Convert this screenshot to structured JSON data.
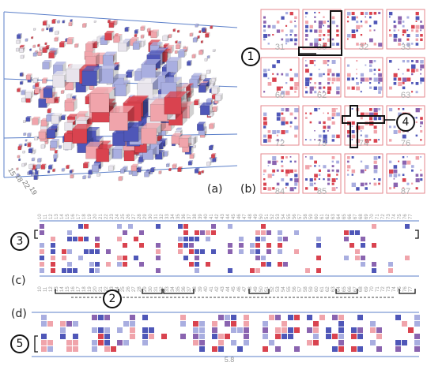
{
  "panels": {
    "a": {
      "label": "(a)",
      "axis_ticks": [
        "15",
        "18",
        "22",
        "19"
      ]
    },
    "b": {
      "label": "(b)",
      "tile_numbers": [
        "31",
        "30",
        "32",
        "33",
        "60",
        "62",
        "",
        "63",
        "72",
        "73",
        "74",
        "76",
        "84",
        "85",
        "",
        "87"
      ]
    },
    "c": {
      "label": "(c)"
    },
    "d": {
      "label": "(d)",
      "footer": "5.8"
    }
  },
  "callouts": [
    {
      "id": "1",
      "text": "1"
    },
    {
      "id": "2",
      "text": "2"
    },
    {
      "id": "3",
      "text": "3"
    },
    {
      "id": "4",
      "text": "4"
    },
    {
      "id": "5",
      "text": "5"
    }
  ],
  "colors": {
    "red": "#d9434f",
    "light_red": "#f0a4ab",
    "blue": "#4f57b8",
    "light_blue": "#a9aee0",
    "purple": "#8a64b0",
    "tile_border": "#e4878d",
    "axis_line": "#5b7fc9"
  }
}
